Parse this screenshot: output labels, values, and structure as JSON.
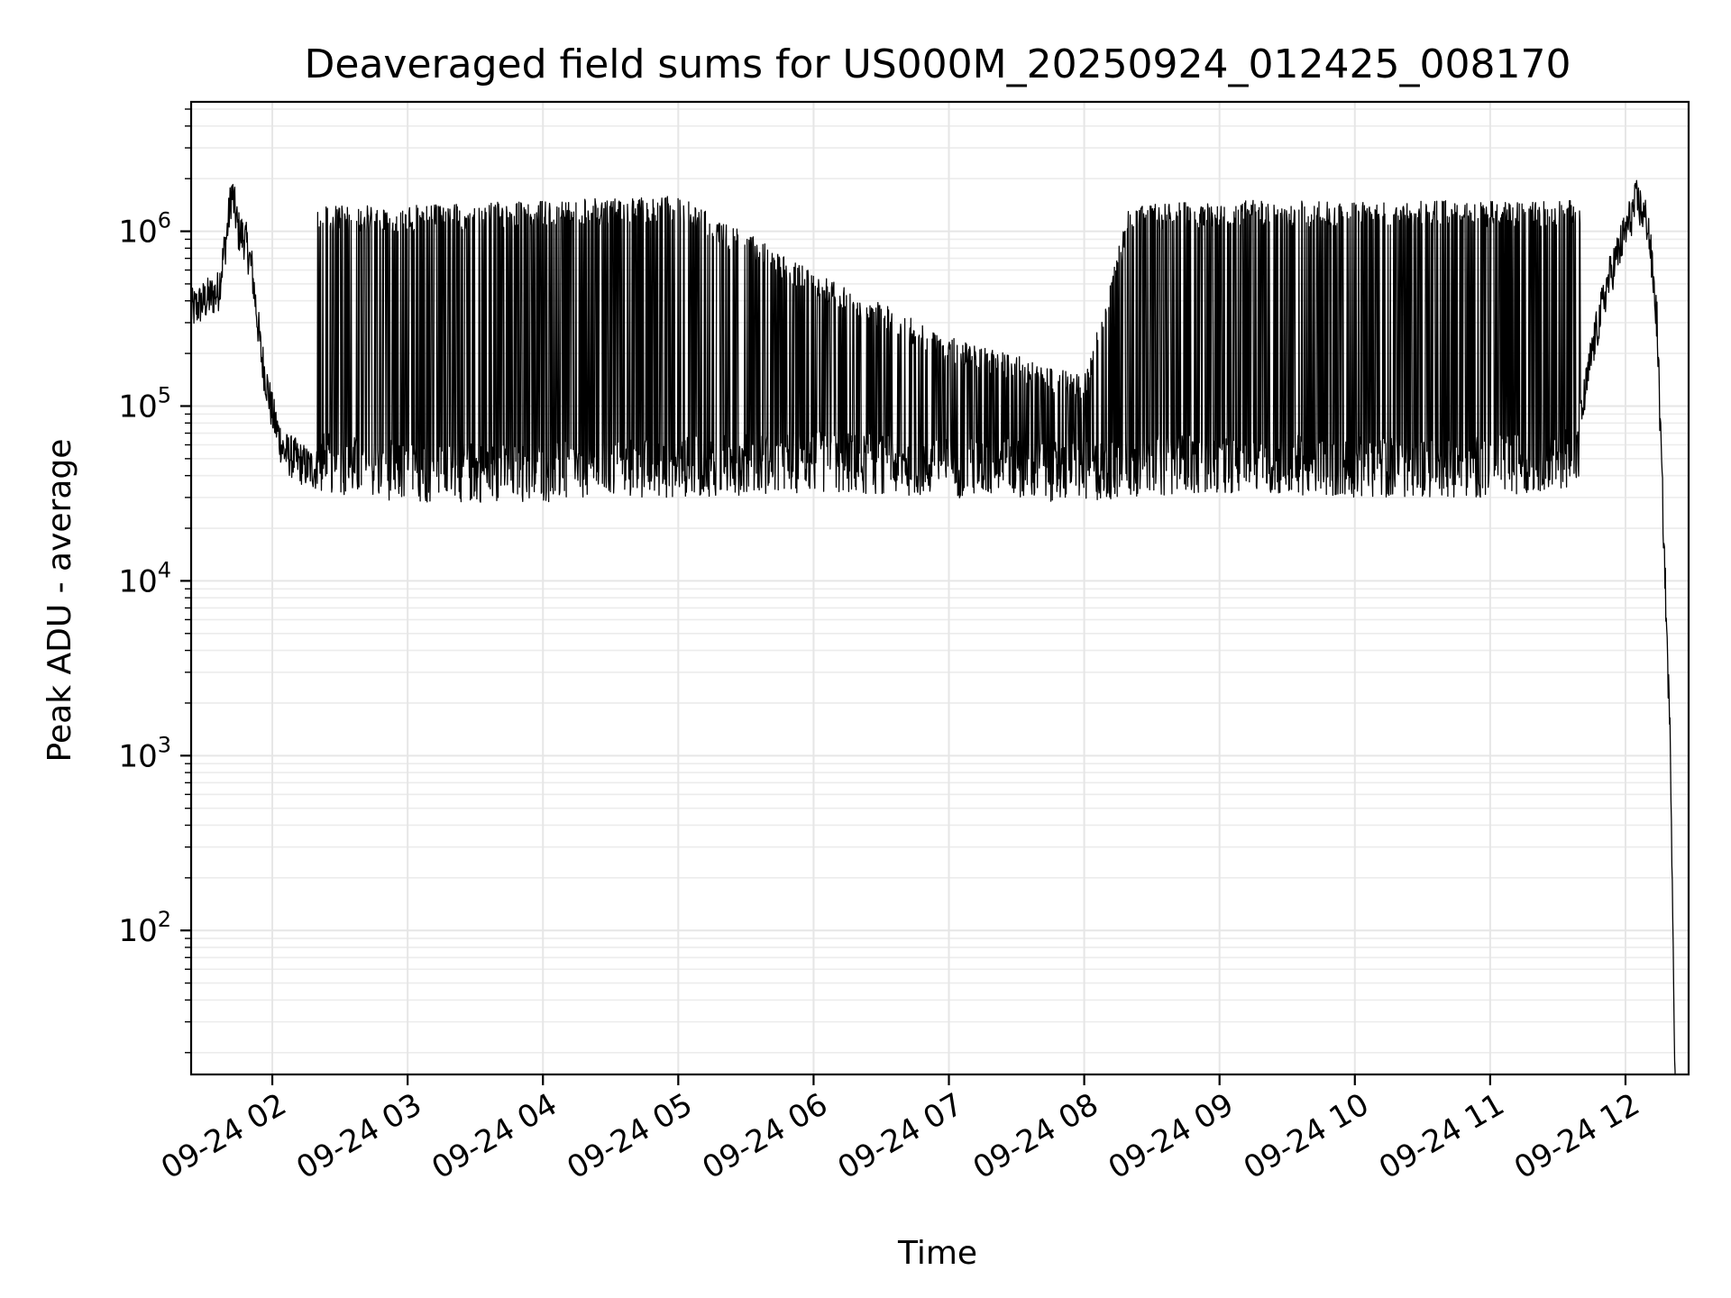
{
  "chart_data": {
    "type": "line",
    "title": "Deaveraged field sums for US000M_20250924_012425_008170",
    "xlabel": "Time",
    "ylabel": "Peak ADU - average",
    "yscale": "log",
    "ylim": [
      15,
      5500000
    ],
    "xlim": [
      "2025-09-24 01:24",
      "2025-09-24 12:28"
    ],
    "grid": true,
    "legend": "none",
    "line_color": "#000000",
    "x_ticks": [
      {
        "label": "09-24 02",
        "time": "2025-09-24 02:00"
      },
      {
        "label": "09-24 03",
        "time": "2025-09-24 03:00"
      },
      {
        "label": "09-24 04",
        "time": "2025-09-24 04:00"
      },
      {
        "label": "09-24 05",
        "time": "2025-09-24 05:00"
      },
      {
        "label": "09-24 06",
        "time": "2025-09-24 06:00"
      },
      {
        "label": "09-24 07",
        "time": "2025-09-24 07:00"
      },
      {
        "label": "09-24 08",
        "time": "2025-09-24 08:00"
      },
      {
        "label": "09-24 09",
        "time": "2025-09-24 09:00"
      },
      {
        "label": "09-24 10",
        "time": "2025-09-24 10:00"
      },
      {
        "label": "09-24 11",
        "time": "2025-09-24 11:00"
      },
      {
        "label": "09-24 12",
        "time": "2025-09-24 12:00"
      }
    ],
    "y_ticks": [
      {
        "base": "10",
        "exp": "2",
        "value": 100
      },
      {
        "base": "10",
        "exp": "3",
        "value": 1000
      },
      {
        "base": "10",
        "exp": "4",
        "value": 10000
      },
      {
        "base": "10",
        "exp": "5",
        "value": 100000
      },
      {
        "base": "10",
        "exp": "6",
        "value": 1000000
      }
    ],
    "series": [
      {
        "points": [
          [
            "2025-09-24 01:24",
            350000
          ],
          [
            "2025-09-24 01:30",
            400000
          ],
          [
            "2025-09-24 01:36",
            450000
          ],
          [
            "2025-09-24 01:40",
            1000000
          ],
          [
            "2025-09-24 01:42",
            1700000
          ],
          [
            "2025-09-24 01:45",
            1000000
          ],
          [
            "2025-09-24 01:48",
            900000
          ],
          [
            "2025-09-24 01:51",
            600000
          ],
          [
            "2025-09-24 01:55",
            200000
          ],
          [
            "2025-09-24 02:00",
            90000
          ],
          [
            "2025-09-24 02:05",
            55000
          ],
          [
            "2025-09-24 02:15",
            45000
          ],
          [
            "2025-09-24 02:30",
            40000
          ],
          [
            "2025-09-24 02:50",
            42000
          ],
          [
            "2025-09-24 03:00",
            50000
          ],
          [
            "2025-09-24 03:30",
            50000
          ],
          [
            "2025-09-24 04:00",
            60000
          ],
          [
            "2025-09-24 05:00",
            60000
          ],
          [
            "2025-09-24 05:55",
            55000
          ],
          [
            "2025-09-24 06:30",
            50000
          ],
          [
            "2025-09-24 07:00",
            40000
          ],
          [
            "2025-09-24 07:30",
            40000
          ],
          [
            "2025-09-24 08:00",
            40000
          ],
          [
            "2025-09-24 08:17",
            40000
          ],
          [
            "2025-09-24 08:20",
            45000
          ],
          [
            "2025-09-24 09:00",
            50000
          ],
          [
            "2025-09-24 10:00",
            50000
          ],
          [
            "2025-09-24 11:00",
            50000
          ],
          [
            "2025-09-24 11:37",
            50000
          ],
          [
            "2025-09-24 11:40",
            80000
          ],
          [
            "2025-09-24 11:45",
            200000
          ],
          [
            "2025-09-24 11:52",
            500000
          ],
          [
            "2025-09-24 12:00",
            1000000
          ],
          [
            "2025-09-24 12:05",
            1500000
          ],
          [
            "2025-09-24 12:10",
            1100000
          ],
          [
            "2025-09-24 12:14",
            300000
          ],
          [
            "2025-09-24 12:20",
            1000
          ],
          [
            "2025-09-24 12:22",
            15
          ]
        ]
      }
    ],
    "envelope": {
      "description_note": "",
      "upper": [
        [
          "2025-09-24 02:20",
          1400000
        ],
        [
          "2025-09-24 03:00",
          1400000
        ],
        [
          "2025-09-24 04:00",
          1500000
        ],
        [
          "2025-09-24 05:00",
          1600000
        ],
        [
          "2025-09-24 06:00",
          600000
        ],
        [
          "2025-09-24 07:00",
          250000
        ],
        [
          "2025-09-24 08:00",
          150000
        ],
        [
          "2025-09-24 08:20",
          1400000
        ],
        [
          "2025-09-24 09:00",
          1500000
        ],
        [
          "2025-09-24 10:00",
          1500000
        ],
        [
          "2025-09-24 11:00",
          1500000
        ],
        [
          "2025-09-24 11:40",
          1500000
        ]
      ],
      "lower": [
        [
          "2025-09-24 02:20",
          32000
        ],
        [
          "2025-09-24 03:00",
          28000
        ],
        [
          "2025-09-24 04:00",
          28000
        ],
        [
          "2025-09-24 05:00",
          30000
        ],
        [
          "2025-09-24 06:00",
          32000
        ],
        [
          "2025-09-24 07:00",
          30000
        ],
        [
          "2025-09-24 08:00",
          28000
        ],
        [
          "2025-09-24 08:20",
          30000
        ],
        [
          "2025-09-24 09:00",
          32000
        ],
        [
          "2025-09-24 10:00",
          30000
        ],
        [
          "2025-09-24 11:00",
          30000
        ],
        [
          "2025-09-24 11:40",
          35000
        ]
      ]
    }
  }
}
